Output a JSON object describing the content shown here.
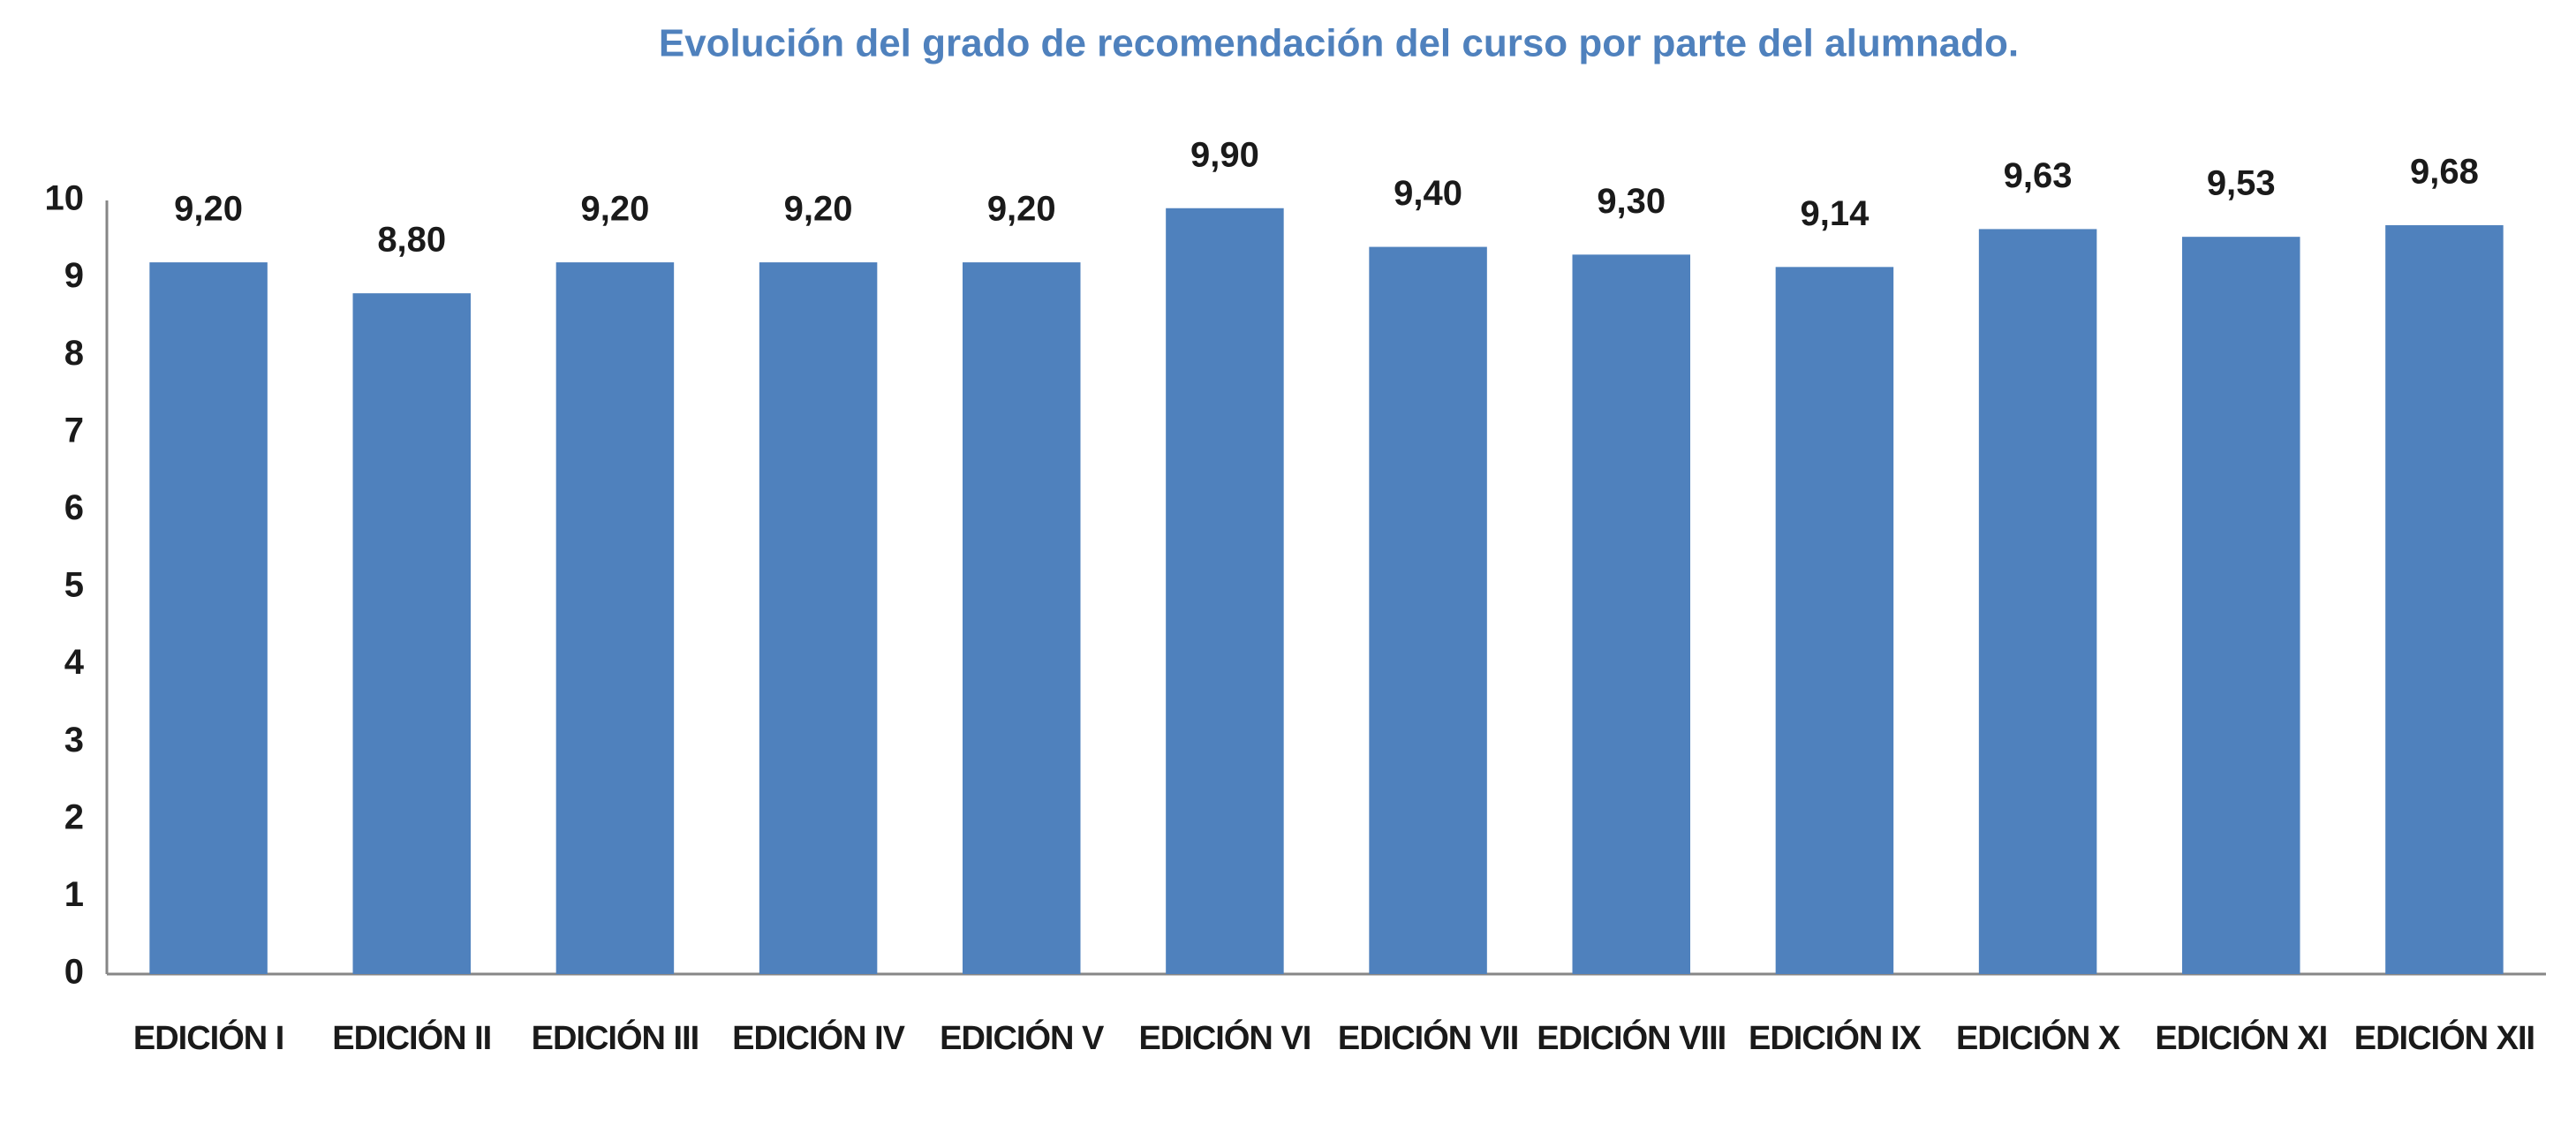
{
  "chart_data": {
    "type": "bar",
    "title": "Evolución del grado de recomendación del curso por parte del alumnado.",
    "categories": [
      "EDICIÓN I",
      "EDICIÓN II",
      "EDICIÓN III",
      "EDICIÓN IV",
      "EDICIÓN V",
      "EDICIÓN VI",
      "EDICIÓN VII",
      "EDICIÓN VIII",
      "EDICIÓN IX",
      "EDICIÓN X",
      "EDICIÓN XI",
      "EDICIÓN XII"
    ],
    "values": [
      9.2,
      8.8,
      9.2,
      9.2,
      9.2,
      9.9,
      9.4,
      9.3,
      9.14,
      9.63,
      9.53,
      9.68
    ],
    "value_labels": [
      "9,20",
      "8,80",
      "9,20",
      "9,20",
      "9,20",
      "9,90",
      "9,40",
      "9,30",
      "9,14",
      "9,63",
      "9,53",
      "9,68"
    ],
    "color": "#4f81bd",
    "ylim": [
      0,
      10
    ],
    "yticks": [
      0,
      1,
      2,
      3,
      4,
      5,
      6,
      7,
      8,
      9,
      10
    ],
    "grid": false
  }
}
